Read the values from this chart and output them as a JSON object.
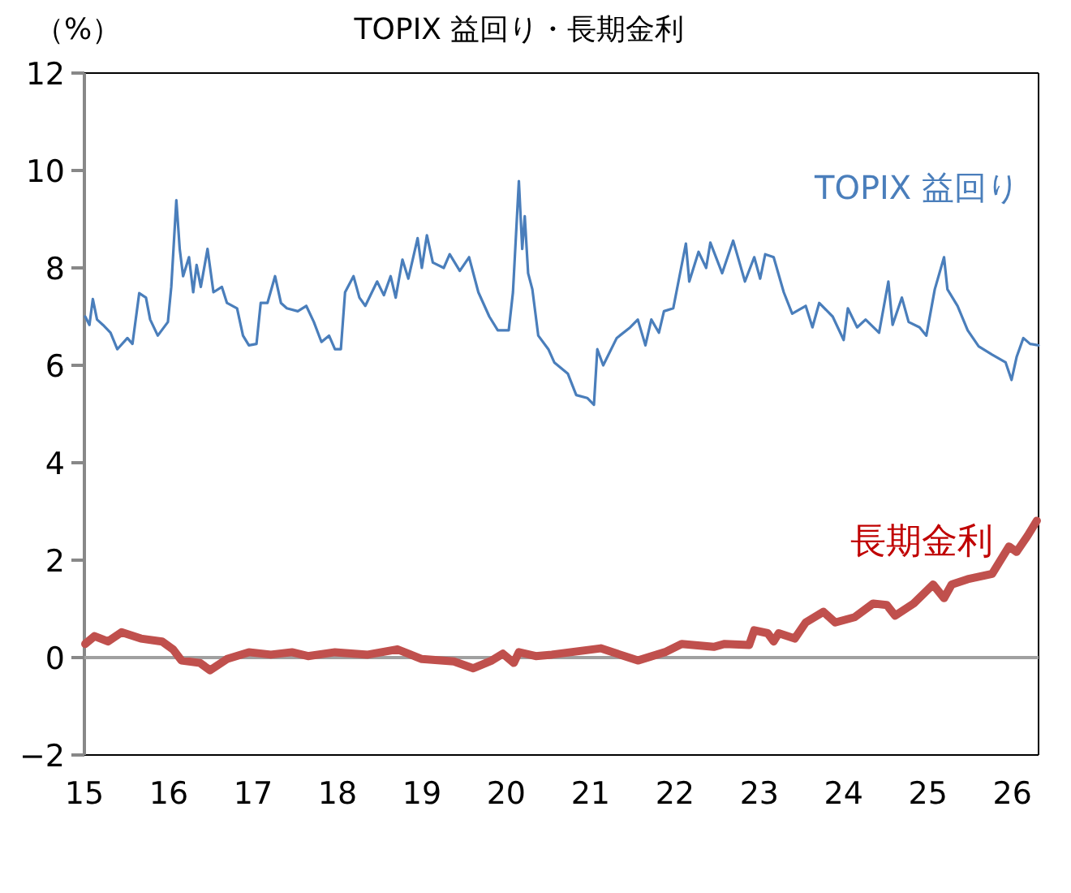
{
  "chart_data": {
    "type": "line",
    "title": "TOPIX 益回り・長期金利",
    "ylabel": "（%）",
    "xlim": [
      15,
      26.31
    ],
    "xticks": [
      15,
      16,
      17,
      18,
      19,
      20,
      21,
      22,
      23,
      24,
      25,
      26
    ],
    "ylim": [
      -2,
      12
    ],
    "yticks": [
      {
        "value": -2,
        "label": "−2"
      },
      0,
      2,
      4,
      6,
      8,
      10,
      12
    ],
    "grid": false,
    "ref_lines": [
      {
        "axis": "y",
        "value": 0,
        "color": "#a0a0a0"
      }
    ],
    "series": [
      {
        "name": "TOPIX 益回り",
        "color": "#4a7ebb",
        "x": [
          15.01,
          15.06,
          15.1,
          15.15,
          15.22,
          15.31,
          15.39,
          15.51,
          15.57,
          15.65,
          15.73,
          15.78,
          15.87,
          15.99,
          16.03,
          16.09,
          16.13,
          16.17,
          16.24,
          16.29,
          16.33,
          16.38,
          16.46,
          16.53,
          16.63,
          16.69,
          16.81,
          16.88,
          16.95,
          17.04,
          17.09,
          17.17,
          17.26,
          17.33,
          17.4,
          17.53,
          17.63,
          17.72,
          17.81,
          17.9,
          17.97,
          18.04,
          18.09,
          18.19,
          18.26,
          18.33,
          18.47,
          18.55,
          18.63,
          18.69,
          18.77,
          18.84,
          18.95,
          19.0,
          19.06,
          19.13,
          19.26,
          19.33,
          19.45,
          19.56,
          19.67,
          19.8,
          19.9,
          20.03,
          20.08,
          20.15,
          20.19,
          20.22,
          20.26,
          20.31,
          20.38,
          20.5,
          20.57,
          20.73,
          20.83,
          20.96,
          21.04,
          21.08,
          21.15,
          21.31,
          21.47,
          21.56,
          21.65,
          21.72,
          21.81,
          21.87,
          21.98,
          22.13,
          22.17,
          22.28,
          22.37,
          22.42,
          22.56,
          22.69,
          22.83,
          22.94,
          23.01,
          23.07,
          23.17,
          23.29,
          23.39,
          23.55,
          23.63,
          23.71,
          23.87,
          24.0,
          24.05,
          24.16,
          24.26,
          24.42,
          24.53,
          24.58,
          24.69,
          24.77,
          24.9,
          24.98,
          25.08,
          25.19,
          25.23,
          25.35,
          25.47,
          25.6,
          25.76,
          25.92,
          25.99,
          26.05,
          26.13,
          26.21,
          26.31
        ],
        "values": [
          7.0,
          6.83,
          7.36,
          6.94,
          6.83,
          6.67,
          6.33,
          6.56,
          6.44,
          7.48,
          7.39,
          6.94,
          6.61,
          6.89,
          7.61,
          9.39,
          8.39,
          7.83,
          8.22,
          7.5,
          8.06,
          7.61,
          8.39,
          7.5,
          7.61,
          7.28,
          7.17,
          6.61,
          6.41,
          6.44,
          7.28,
          7.28,
          7.83,
          7.28,
          7.17,
          7.11,
          7.22,
          6.89,
          6.48,
          6.61,
          6.33,
          6.33,
          7.5,
          7.83,
          7.39,
          7.22,
          7.72,
          7.44,
          7.83,
          7.39,
          8.17,
          7.78,
          8.61,
          8.0,
          8.67,
          8.11,
          8.0,
          8.28,
          7.94,
          8.22,
          7.5,
          7.0,
          6.72,
          6.72,
          7.5,
          9.78,
          8.39,
          9.06,
          7.89,
          7.56,
          6.61,
          6.33,
          6.06,
          5.83,
          5.39,
          5.33,
          5.19,
          6.33,
          6.0,
          6.56,
          6.78,
          6.94,
          6.41,
          6.94,
          6.67,
          7.11,
          7.17,
          8.5,
          7.72,
          8.33,
          8.0,
          8.52,
          7.89,
          8.56,
          7.72,
          8.22,
          7.78,
          8.28,
          8.22,
          7.5,
          7.06,
          7.22,
          6.78,
          7.28,
          7.0,
          6.52,
          7.17,
          6.78,
          6.94,
          6.67,
          7.72,
          6.83,
          7.39,
          6.89,
          6.78,
          6.61,
          7.56,
          8.22,
          7.56,
          7.22,
          6.72,
          6.39,
          6.22,
          6.06,
          5.7,
          6.17,
          6.56,
          6.44,
          6.41
        ]
      },
      {
        "name": "長期金利",
        "color": "#c0504d",
        "x": [
          15.01,
          15.12,
          15.28,
          15.44,
          15.67,
          15.92,
          16.05,
          16.15,
          16.37,
          16.49,
          16.69,
          16.95,
          17.21,
          17.46,
          17.65,
          17.97,
          18.36,
          18.71,
          19.0,
          19.38,
          19.61,
          19.83,
          19.96,
          20.09,
          20.15,
          20.35,
          20.54,
          21.12,
          21.56,
          21.88,
          22.08,
          22.46,
          22.59,
          22.88,
          22.94,
          23.1,
          23.17,
          23.23,
          23.42,
          23.55,
          23.76,
          23.9,
          24.13,
          24.35,
          24.51,
          24.61,
          24.83,
          25.06,
          25.19,
          25.28,
          25.47,
          25.76,
          25.96,
          26.05,
          26.18,
          26.29
        ],
        "values": [
          0.28,
          0.44,
          0.33,
          0.52,
          0.39,
          0.33,
          0.17,
          -0.06,
          -0.11,
          -0.26,
          -0.03,
          0.11,
          0.06,
          0.11,
          0.03,
          0.11,
          0.06,
          0.17,
          -0.03,
          -0.08,
          -0.22,
          -0.06,
          0.08,
          -0.11,
          0.11,
          0.03,
          0.06,
          0.19,
          -0.06,
          0.11,
          0.28,
          0.22,
          0.28,
          0.26,
          0.56,
          0.5,
          0.33,
          0.5,
          0.39,
          0.72,
          0.94,
          0.72,
          0.83,
          1.11,
          1.08,
          0.86,
          1.11,
          1.5,
          1.22,
          1.5,
          1.61,
          1.72,
          2.28,
          2.17,
          2.5,
          2.81
        ]
      }
    ]
  }
}
